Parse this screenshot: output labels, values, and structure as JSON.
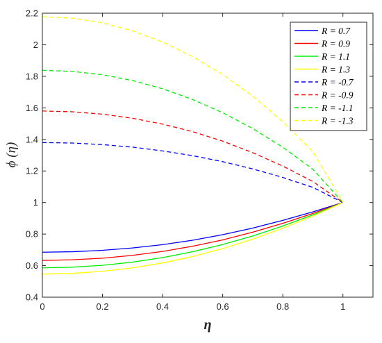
{
  "chart_data": {
    "type": "line",
    "title": "",
    "xlabel": "η",
    "ylabel": "ϕ (η)",
    "xlim": [
      0,
      1.1
    ],
    "ylim": [
      0.4,
      2.2
    ],
    "xticks": [
      "0",
      "0.2",
      "0.4",
      "0.6",
      "0.8",
      "1"
    ],
    "yticks": [
      "0.4",
      "0.6",
      "0.8",
      "1",
      "1.2",
      "1.4",
      "1.6",
      "1.8",
      "2",
      "2.2"
    ],
    "grid": false,
    "legend_position": "top-right",
    "x": [
      0,
      0.1,
      0.2,
      0.3,
      0.4,
      0.5,
      0.6,
      0.7,
      0.8,
      0.9,
      1.0
    ],
    "series": [
      {
        "name": "R = 0.7",
        "color": "#0000ff",
        "style": "solid",
        "values": [
          0.685,
          0.688,
          0.697,
          0.712,
          0.733,
          0.761,
          0.796,
          0.838,
          0.887,
          0.941,
          1.0
        ]
      },
      {
        "name": "R = 0.9",
        "color": "#ff0000",
        "style": "solid",
        "values": [
          0.633,
          0.637,
          0.647,
          0.665,
          0.69,
          0.723,
          0.763,
          0.812,
          0.868,
          0.931,
          1.0
        ]
      },
      {
        "name": "R = 1.1",
        "color": "#00ee00",
        "style": "solid",
        "values": [
          0.586,
          0.59,
          0.602,
          0.622,
          0.651,
          0.688,
          0.734,
          0.788,
          0.851,
          0.922,
          1.0
        ]
      },
      {
        "name": "R = 1.3",
        "color": "#ffff00",
        "style": "solid",
        "values": [
          0.546,
          0.551,
          0.564,
          0.586,
          0.617,
          0.658,
          0.708,
          0.768,
          0.837,
          0.914,
          1.0
        ]
      },
      {
        "name": "R = -0.7",
        "color": "#0000ff",
        "style": "dashed",
        "values": [
          1.38,
          1.377,
          1.367,
          1.351,
          1.327,
          1.297,
          1.259,
          1.213,
          1.159,
          1.096,
          1.0
        ]
      },
      {
        "name": "R = -0.9",
        "color": "#ff0000",
        "style": "dashed",
        "values": [
          1.58,
          1.575,
          1.56,
          1.534,
          1.497,
          1.449,
          1.389,
          1.316,
          1.231,
          1.133,
          1.0
        ]
      },
      {
        "name": "R = -1.1",
        "color": "#00ee00",
        "style": "dashed",
        "values": [
          1.838,
          1.831,
          1.81,
          1.773,
          1.721,
          1.653,
          1.569,
          1.469,
          1.35,
          1.211,
          1.0
        ]
      },
      {
        "name": "R = -1.3",
        "color": "#ffff00",
        "style": "dashed",
        "values": [
          2.178,
          2.168,
          2.139,
          2.088,
          2.017,
          1.925,
          1.811,
          1.674,
          1.512,
          1.322,
          1.0
        ]
      }
    ]
  }
}
